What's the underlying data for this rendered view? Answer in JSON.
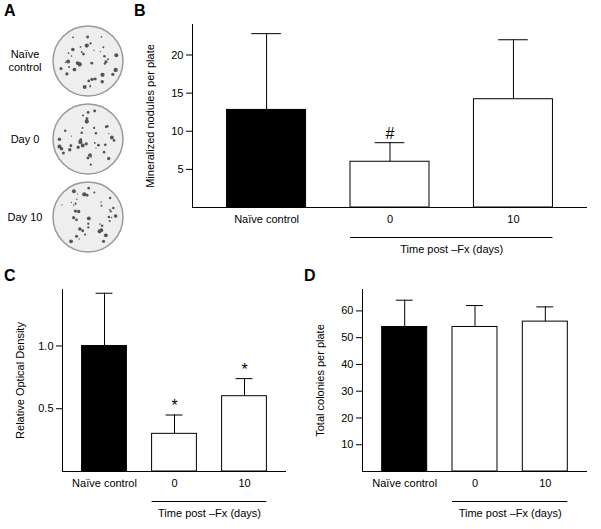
{
  "chart_data": [
    {
      "type": "image",
      "title": "A",
      "categories": [
        "Naïve control",
        "Day 0",
        "Day 10"
      ]
    },
    {
      "type": "bar",
      "title": "B",
      "categories": [
        "Naïve control",
        "0",
        "10"
      ],
      "values": [
        12.8,
        6,
        14.2
      ],
      "errors": [
        10,
        2.5,
        7.8
      ],
      "colors": [
        "#000000",
        "#ffffff",
        "#ffffff"
      ],
      "xlabel": "Time post –Fx (days)",
      "ylabel": "Mineralized nodules per plate",
      "ylim": [
        0,
        24
      ],
      "yticks": [
        5,
        10,
        15,
        20
      ],
      "annotations": [
        {
          "category": "0",
          "text": "#"
        }
      ]
    },
    {
      "type": "bar",
      "title": "C",
      "categories": [
        "Naïve control",
        "0",
        "10"
      ],
      "values": [
        1.0,
        0.3,
        0.6
      ],
      "errors": [
        0.42,
        0.15,
        0.14
      ],
      "colors": [
        "#000000",
        "#ffffff",
        "#ffffff"
      ],
      "xlabel": "Time post –Fx (days)",
      "ylabel": "Relative Optical Density",
      "ylim": [
        0,
        1.45
      ],
      "yticks": [
        0.5,
        {
          "value": 1,
          "label": "1.0"
        }
      ],
      "annotations": [
        {
          "category": "0",
          "text": "*"
        },
        {
          "category": "10",
          "text": "*"
        }
      ]
    },
    {
      "type": "bar",
      "title": "D",
      "categories": [
        "Naïve control",
        "0",
        "10"
      ],
      "values": [
        54,
        54,
        56
      ],
      "errors": [
        10,
        8,
        5.5
      ],
      "colors": [
        "#000000",
        "#ffffff",
        "#ffffff"
      ],
      "xlabel": "Time post –Fx (days)",
      "ylabel": "Total colonies per plate",
      "ylim": [
        0,
        68
      ],
      "yticks": [
        10,
        20,
        30,
        40,
        50,
        60
      ]
    }
  ]
}
